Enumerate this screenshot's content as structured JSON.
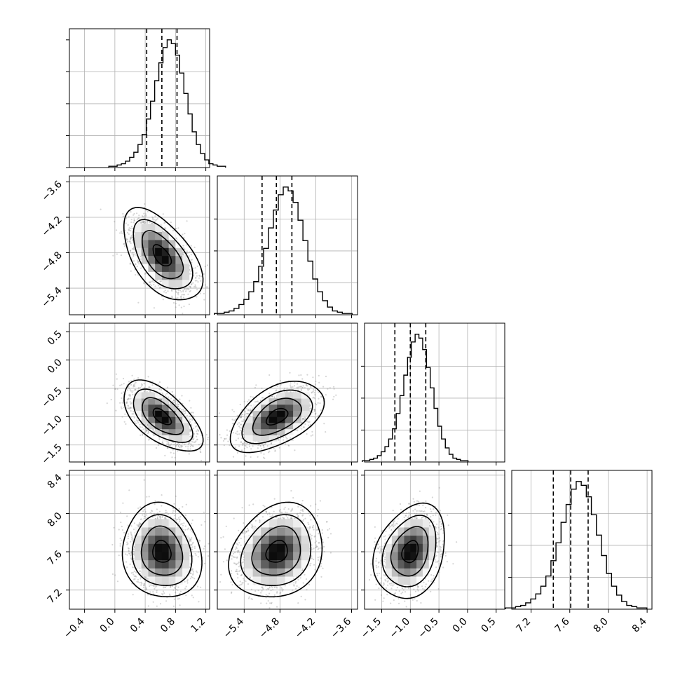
{
  "chart_data": {
    "type": "corner",
    "parameters": [
      {
        "mean": 0.62,
        "sd": 0.2,
        "q16": 0.42,
        "q50": 0.62,
        "q84": 0.82,
        "lim": [
          -0.6,
          1.25
        ],
        "ticks": [
          -0.4,
          0.0,
          0.4,
          0.8,
          1.2
        ],
        "tick_labels": [
          "−0.4",
          "0.0",
          "0.4",
          "0.8",
          "1.2"
        ]
      },
      {
        "mean": -4.85,
        "sd": 0.3,
        "q16": -5.1,
        "q50": -4.86,
        "q84": -4.6,
        "lim": [
          -5.85,
          -3.5
        ],
        "ticks": [
          -5.4,
          -4.8,
          -4.2,
          -3.6
        ],
        "tick_labels": [
          "−5.4",
          "−4.8",
          "−4.2",
          "−3.6"
        ]
      },
      {
        "mean": -1.0,
        "sd": 0.24,
        "q16": -1.27,
        "q50": -1.0,
        "q84": -0.73,
        "lim": [
          -1.8,
          0.65
        ],
        "ticks": [
          -1.5,
          -1.0,
          -0.5,
          0.0,
          0.5
        ],
        "tick_labels": [
          "−1.5",
          "−1.0",
          "−0.5",
          "0.0",
          "0.5"
        ]
      },
      {
        "mean": 7.6,
        "sd": 0.19,
        "q16": 7.43,
        "q50": 7.61,
        "q84": 7.79,
        "lim": [
          7.0,
          8.45
        ],
        "ticks": [
          7.2,
          7.6,
          8.0,
          8.4
        ],
        "tick_labels": [
          "7.2",
          "7.6",
          "8.0",
          "8.4"
        ]
      }
    ],
    "correlations": {
      "1-0": -0.55,
      "2-0": -0.6,
      "2-1": 0.5,
      "3-0": -0.1,
      "3-1": 0.2,
      "3-2": 0.25
    },
    "histogram_shape": [
      0.01,
      0.01,
      0.02,
      0.03,
      0.05,
      0.08,
      0.12,
      0.18,
      0.26,
      0.38,
      0.52,
      0.68,
      0.82,
      0.94,
      1.0,
      0.97,
      0.88,
      0.74,
      0.58,
      0.42,
      0.28,
      0.18,
      0.11,
      0.06,
      0.03,
      0.02,
      0.01,
      0.01
    ],
    "grid": true,
    "quantile_lines": "dashed"
  }
}
